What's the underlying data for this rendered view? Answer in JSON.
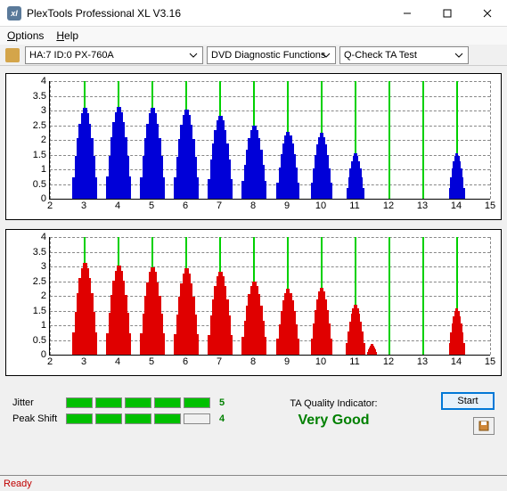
{
  "window": {
    "title": "PlexTools Professional XL V3.16",
    "icon_text": "xl",
    "icon_bg": "#5a7a9a"
  },
  "menu": {
    "options": "Options",
    "help": "Help"
  },
  "toolbar": {
    "device": "HA:7 ID:0   PX-760A",
    "function": "DVD Diagnostic Functions",
    "test": "Q-Check TA Test"
  },
  "chart": {
    "ymin": 0,
    "ymax": 4,
    "ystep": 0.5,
    "xmin": 2,
    "xmax": 15,
    "xstep": 1,
    "ylabels": [
      "0",
      "0.5",
      "1",
      "1.5",
      "2",
      "2.5",
      "3",
      "3.5",
      "4"
    ],
    "xlabels": [
      "2",
      "3",
      "4",
      "5",
      "6",
      "7",
      "8",
      "9",
      "10",
      "11",
      "12",
      "13",
      "14",
      "15"
    ],
    "grid_color": "#888888",
    "peak_line_color": "#00d000",
    "bg": "#ffffff"
  },
  "top_chart": {
    "color": "#0000d8",
    "peaks": [
      {
        "x": 3,
        "h": 3.1,
        "w": 0.78
      },
      {
        "x": 4,
        "h": 3.15,
        "w": 0.78
      },
      {
        "x": 5,
        "h": 3.1,
        "w": 0.78
      },
      {
        "x": 6,
        "h": 3.05,
        "w": 0.78
      },
      {
        "x": 7,
        "h": 2.85,
        "w": 0.78
      },
      {
        "x": 8,
        "h": 2.5,
        "w": 0.78
      },
      {
        "x": 9,
        "h": 2.3,
        "w": 0.72
      },
      {
        "x": 10,
        "h": 2.25,
        "w": 0.66
      },
      {
        "x": 11,
        "h": 1.55,
        "w": 0.56
      },
      {
        "x": 14,
        "h": 1.55,
        "w": 0.5
      }
    ]
  },
  "bottom_chart": {
    "color": "#e00000",
    "peaks": [
      {
        "x": 3,
        "h": 3.15,
        "w": 0.78
      },
      {
        "x": 4,
        "h": 3.05,
        "w": 0.78
      },
      {
        "x": 5,
        "h": 3.0,
        "w": 0.78
      },
      {
        "x": 6,
        "h": 2.95,
        "w": 0.78
      },
      {
        "x": 7,
        "h": 2.85,
        "w": 0.78
      },
      {
        "x": 8,
        "h": 2.5,
        "w": 0.78
      },
      {
        "x": 9,
        "h": 2.25,
        "w": 0.72
      },
      {
        "x": 10,
        "h": 2.3,
        "w": 0.66
      },
      {
        "x": 11,
        "h": 1.7,
        "w": 0.6
      },
      {
        "x": 11.5,
        "h": 0.38,
        "w": 0.3
      },
      {
        "x": 14,
        "h": 1.6,
        "w": 0.5
      }
    ]
  },
  "metrics": {
    "jitter": {
      "label": "Jitter",
      "value": "5",
      "filled": 5,
      "total": 5,
      "color": "#00c000"
    },
    "peakshift": {
      "label": "Peak Shift",
      "value": "4",
      "filled": 4,
      "total": 5,
      "color": "#00c000"
    }
  },
  "quality": {
    "label": "TA Quality Indicator:",
    "value": "Very Good",
    "color": "#008000"
  },
  "buttons": {
    "start": "Start"
  },
  "status": {
    "text": "Ready",
    "color": "#c00000"
  }
}
